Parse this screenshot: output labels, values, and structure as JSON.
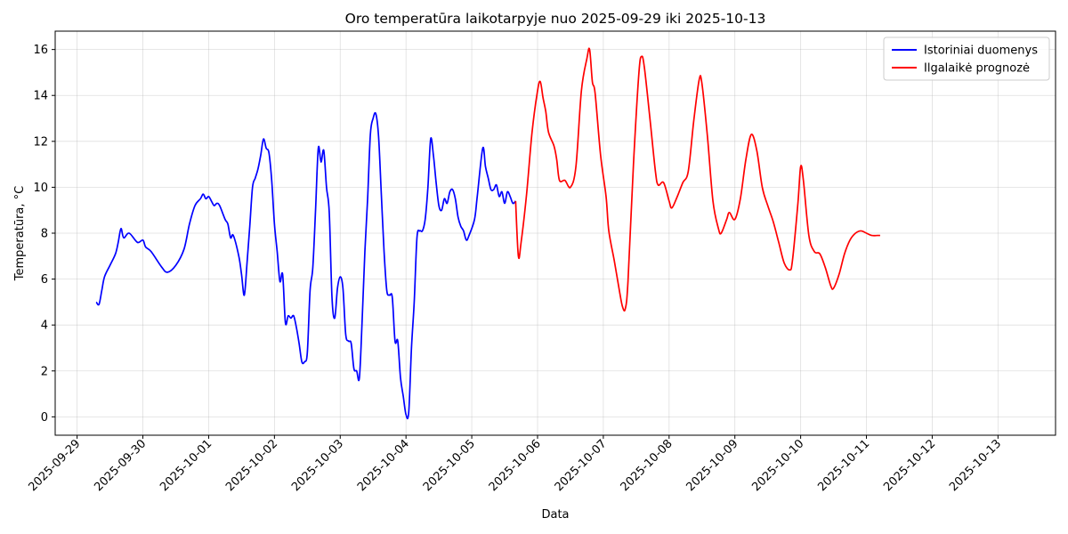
{
  "chart_data": {
    "type": "line",
    "title": "Oro temperatūra laikotarpyje nuo 2025-09-29 iki 2025-10-13",
    "xlabel": "Data",
    "ylabel": "Temperatūra, °C",
    "xlim": [
      "2025-09-28T16:00",
      "2025-10-13T21:00"
    ],
    "ylim": [
      -0.8,
      16.8
    ],
    "x_ticks": [
      "2025-09-29",
      "2025-09-30",
      "2025-10-01",
      "2025-10-02",
      "2025-10-03",
      "2025-10-04",
      "2025-10-05",
      "2025-10-06",
      "2025-10-07",
      "2025-10-08",
      "2025-10-09",
      "2025-10-10",
      "2025-10-11",
      "2025-10-12",
      "2025-10-13"
    ],
    "y_ticks": [
      0,
      2,
      4,
      6,
      8,
      10,
      12,
      14,
      16
    ],
    "grid": true,
    "legend": "top-right",
    "series": [
      {
        "name": "Istoriniai duomenys",
        "color": "#0000ff",
        "points": [
          [
            "2025-09-29T07:00",
            5.0
          ],
          [
            "2025-09-29T08:00",
            4.9
          ],
          [
            "2025-09-29T09:00",
            5.5
          ],
          [
            "2025-09-29T10:00",
            6.1
          ],
          [
            "2025-09-29T12:00",
            6.6
          ],
          [
            "2025-09-29T14:00",
            7.1
          ],
          [
            "2025-09-29T15:00",
            7.6
          ],
          [
            "2025-09-29T16:00",
            8.2
          ],
          [
            "2025-09-29T17:00",
            7.8
          ],
          [
            "2025-09-29T19:00",
            8.0
          ],
          [
            "2025-09-29T22:00",
            7.6
          ],
          [
            "2025-09-30T00:00",
            7.7
          ],
          [
            "2025-09-30T01:00",
            7.4
          ],
          [
            "2025-09-30T03:00",
            7.2
          ],
          [
            "2025-09-30T07:00",
            6.5
          ],
          [
            "2025-09-30T09:00",
            6.3
          ],
          [
            "2025-09-30T12:00",
            6.6
          ],
          [
            "2025-09-30T15:00",
            7.3
          ],
          [
            "2025-09-30T17:00",
            8.4
          ],
          [
            "2025-09-30T19:00",
            9.2
          ],
          [
            "2025-09-30T21:00",
            9.5
          ],
          [
            "2025-09-30T22:00",
            9.7
          ],
          [
            "2025-09-30T23:00",
            9.5
          ],
          [
            "2025-10-01T00:00",
            9.6
          ],
          [
            "2025-10-01T01:00",
            9.4
          ],
          [
            "2025-10-01T02:00",
            9.2
          ],
          [
            "2025-10-01T03:00",
            9.3
          ],
          [
            "2025-10-01T04:00",
            9.2
          ],
          [
            "2025-10-01T06:00",
            8.6
          ],
          [
            "2025-10-01T07:00",
            8.4
          ],
          [
            "2025-10-01T08:00",
            7.8
          ],
          [
            "2025-10-01T09:00",
            7.9
          ],
          [
            "2025-10-01T11:00",
            7.0
          ],
          [
            "2025-10-01T12:00",
            6.2
          ],
          [
            "2025-10-01T13:00",
            5.3
          ],
          [
            "2025-10-01T14:00",
            6.7
          ],
          [
            "2025-10-01T15:00",
            8.3
          ],
          [
            "2025-10-01T16:00",
            10.0
          ],
          [
            "2025-10-01T17:00",
            10.4
          ],
          [
            "2025-10-01T18:00",
            10.8
          ],
          [
            "2025-10-01T19:00",
            11.4
          ],
          [
            "2025-10-01T20:00",
            12.1
          ],
          [
            "2025-10-01T21:00",
            11.7
          ],
          [
            "2025-10-01T22:00",
            11.5
          ],
          [
            "2025-10-01T23:00",
            10.3
          ],
          [
            "2025-10-02T00:00",
            8.4
          ],
          [
            "2025-10-02T01:00",
            7.2
          ],
          [
            "2025-10-02T02:00",
            5.9
          ],
          [
            "2025-10-02T03:00",
            6.2
          ],
          [
            "2025-10-02T04:00",
            4.1
          ],
          [
            "2025-10-02T05:00",
            4.4
          ],
          [
            "2025-10-02T06:00",
            4.3
          ],
          [
            "2025-10-02T07:00",
            4.4
          ],
          [
            "2025-10-02T08:00",
            3.9
          ],
          [
            "2025-10-02T09:00",
            3.2
          ],
          [
            "2025-10-02T10:00",
            2.4
          ],
          [
            "2025-10-02T11:00",
            2.4
          ],
          [
            "2025-10-02T12:00",
            2.8
          ],
          [
            "2025-10-02T13:00",
            5.5
          ],
          [
            "2025-10-02T14:00",
            6.5
          ],
          [
            "2025-10-02T15:00",
            9.0
          ],
          [
            "2025-10-02T16:00",
            11.7
          ],
          [
            "2025-10-02T17:00",
            11.1
          ],
          [
            "2025-10-02T18:00",
            11.6
          ],
          [
            "2025-10-02T19:00",
            10.0
          ],
          [
            "2025-10-02T20:00",
            8.9
          ],
          [
            "2025-10-02T21:00",
            5.2
          ],
          [
            "2025-10-02T22:00",
            4.3
          ],
          [
            "2025-10-02T23:00",
            5.6
          ],
          [
            "2025-10-03T00:00",
            6.1
          ],
          [
            "2025-10-03T01:00",
            5.6
          ],
          [
            "2025-10-03T02:00",
            3.6
          ],
          [
            "2025-10-03T03:00",
            3.3
          ],
          [
            "2025-10-03T04:00",
            3.2
          ],
          [
            "2025-10-03T05:00",
            2.1
          ],
          [
            "2025-10-03T06:00",
            2.0
          ],
          [
            "2025-10-03T07:00",
            1.7
          ],
          [
            "2025-10-03T08:00",
            4.2
          ],
          [
            "2025-10-03T09:00",
            7.2
          ],
          [
            "2025-10-03T10:00",
            9.5
          ],
          [
            "2025-10-03T11:00",
            12.3
          ],
          [
            "2025-10-03T12:00",
            13.0
          ],
          [
            "2025-10-03T13:00",
            13.2
          ],
          [
            "2025-10-03T14:00",
            12.2
          ],
          [
            "2025-10-03T15:00",
            9.7
          ],
          [
            "2025-10-03T16:00",
            7.2
          ],
          [
            "2025-10-03T17:00",
            5.5
          ],
          [
            "2025-10-03T18:00",
            5.3
          ],
          [
            "2025-10-03T19:00",
            5.2
          ],
          [
            "2025-10-03T20:00",
            3.3
          ],
          [
            "2025-10-03T21:00",
            3.3
          ],
          [
            "2025-10-03T22:00",
            1.7
          ],
          [
            "2025-10-03T23:00",
            0.9
          ],
          [
            "2025-10-04T00:00",
            0.1
          ],
          [
            "2025-10-04T01:00",
            0.2
          ],
          [
            "2025-10-04T02:00",
            3.0
          ],
          [
            "2025-10-04T03:00",
            5.0
          ],
          [
            "2025-10-04T04:00",
            7.8
          ],
          [
            "2025-10-04T05:00",
            8.1
          ],
          [
            "2025-10-04T06:00",
            8.1
          ],
          [
            "2025-10-04T07:00",
            8.6
          ],
          [
            "2025-10-04T08:00",
            10.0
          ],
          [
            "2025-10-04T09:00",
            12.1
          ],
          [
            "2025-10-04T10:00",
            11.4
          ],
          [
            "2025-10-04T11:00",
            10.2
          ],
          [
            "2025-10-04T12:00",
            9.2
          ],
          [
            "2025-10-04T13:00",
            9.0
          ],
          [
            "2025-10-04T14:00",
            9.5
          ],
          [
            "2025-10-04T15:00",
            9.3
          ],
          [
            "2025-10-04T16:00",
            9.8
          ],
          [
            "2025-10-04T17:00",
            9.9
          ],
          [
            "2025-10-04T18:00",
            9.5
          ],
          [
            "2025-10-04T19:00",
            8.7
          ],
          [
            "2025-10-04T20:00",
            8.3
          ],
          [
            "2025-10-04T21:00",
            8.1
          ],
          [
            "2025-10-04T22:00",
            7.7
          ],
          [
            "2025-10-04T23:00",
            7.9
          ],
          [
            "2025-10-05T01:00",
            8.6
          ],
          [
            "2025-10-05T02:00",
            9.6
          ],
          [
            "2025-10-05T04:00",
            11.7
          ],
          [
            "2025-10-05T05:00",
            10.9
          ],
          [
            "2025-10-05T06:00",
            10.4
          ],
          [
            "2025-10-05T07:00",
            9.9
          ],
          [
            "2025-10-05T08:00",
            9.9
          ],
          [
            "2025-10-05T09:00",
            10.1
          ],
          [
            "2025-10-05T10:00",
            9.6
          ],
          [
            "2025-10-05T11:00",
            9.8
          ],
          [
            "2025-10-05T12:00",
            9.3
          ],
          [
            "2025-10-05T13:00",
            9.8
          ],
          [
            "2025-10-05T14:00",
            9.6
          ],
          [
            "2025-10-05T15:00",
            9.3
          ],
          [
            "2025-10-05T16:00",
            9.4
          ]
        ]
      },
      {
        "name": "Ilgalaikė prognozė",
        "color": "#ff0000",
        "points": [
          [
            "2025-10-05T16:00",
            9.4
          ],
          [
            "2025-10-05T17:00",
            7.0
          ],
          [
            "2025-10-05T18:00",
            7.6
          ],
          [
            "2025-10-05T20:00",
            9.7
          ],
          [
            "2025-10-05T22:00",
            12.4
          ],
          [
            "2025-10-06T00:00",
            14.2
          ],
          [
            "2025-10-06T01:00",
            14.6
          ],
          [
            "2025-10-06T02:00",
            13.9
          ],
          [
            "2025-10-06T03:00",
            13.3
          ],
          [
            "2025-10-06T04:00",
            12.4
          ],
          [
            "2025-10-06T06:00",
            11.8
          ],
          [
            "2025-10-06T07:00",
            11.2
          ],
          [
            "2025-10-06T08:00",
            10.3
          ],
          [
            "2025-10-06T10:00",
            10.3
          ],
          [
            "2025-10-06T12:00",
            10.0
          ],
          [
            "2025-10-06T14:00",
            10.9
          ],
          [
            "2025-10-06T16:00",
            14.2
          ],
          [
            "2025-10-06T18:00",
            15.6
          ],
          [
            "2025-10-06T19:00",
            16.0
          ],
          [
            "2025-10-06T20:00",
            14.6
          ],
          [
            "2025-10-06T21:00",
            14.1
          ],
          [
            "2025-10-06T23:00",
            11.4
          ],
          [
            "2025-10-07T01:00",
            9.6
          ],
          [
            "2025-10-07T02:00",
            8.1
          ],
          [
            "2025-10-07T04:00",
            6.8
          ],
          [
            "2025-10-07T06:00",
            5.4
          ],
          [
            "2025-10-07T07:00",
            4.8
          ],
          [
            "2025-10-07T08:00",
            4.7
          ],
          [
            "2025-10-07T09:00",
            5.9
          ],
          [
            "2025-10-07T11:00",
            11.0
          ],
          [
            "2025-10-07T13:00",
            15.0
          ],
          [
            "2025-10-07T14:00",
            15.7
          ],
          [
            "2025-10-07T15:00",
            15.2
          ],
          [
            "2025-10-07T17:00",
            13.0
          ],
          [
            "2025-10-07T19:00",
            10.7
          ],
          [
            "2025-10-07T20:00",
            10.1
          ],
          [
            "2025-10-07T22:00",
            10.2
          ],
          [
            "2025-10-08T00:00",
            9.4
          ],
          [
            "2025-10-08T01:00",
            9.1
          ],
          [
            "2025-10-08T03:00",
            9.6
          ],
          [
            "2025-10-08T05:00",
            10.2
          ],
          [
            "2025-10-08T07:00",
            10.7
          ],
          [
            "2025-10-08T09:00",
            12.9
          ],
          [
            "2025-10-08T11:00",
            14.7
          ],
          [
            "2025-10-08T12:00",
            14.5
          ],
          [
            "2025-10-08T14:00",
            12.2
          ],
          [
            "2025-10-08T16:00",
            9.4
          ],
          [
            "2025-10-08T18:00",
            8.2
          ],
          [
            "2025-10-08T19:00",
            8.0
          ],
          [
            "2025-10-08T21:00",
            8.6
          ],
          [
            "2025-10-08T22:00",
            8.9
          ],
          [
            "2025-10-09T00:00",
            8.6
          ],
          [
            "2025-10-09T02:00",
            9.5
          ],
          [
            "2025-10-09T04:00",
            11.2
          ],
          [
            "2025-10-09T06:00",
            12.3
          ],
          [
            "2025-10-09T08:00",
            11.6
          ],
          [
            "2025-10-09T10:00",
            10.0
          ],
          [
            "2025-10-09T12:00",
            9.2
          ],
          [
            "2025-10-09T14:00",
            8.5
          ],
          [
            "2025-10-09T16:00",
            7.6
          ],
          [
            "2025-10-09T18:00",
            6.7
          ],
          [
            "2025-10-09T20:00",
            6.4
          ],
          [
            "2025-10-09T21:00",
            6.8
          ],
          [
            "2025-10-09T23:00",
            9.3
          ],
          [
            "2025-10-10T00:00",
            10.9
          ],
          [
            "2025-10-10T01:00",
            10.3
          ],
          [
            "2025-10-10T03:00",
            7.9
          ],
          [
            "2025-10-10T05:00",
            7.2
          ],
          [
            "2025-10-10T07:00",
            7.1
          ],
          [
            "2025-10-10T09:00",
            6.5
          ],
          [
            "2025-10-10T11:00",
            5.7
          ],
          [
            "2025-10-10T12:00",
            5.6
          ],
          [
            "2025-10-10T14:00",
            6.2
          ],
          [
            "2025-10-10T16:00",
            7.1
          ],
          [
            "2025-10-10T18:00",
            7.7
          ],
          [
            "2025-10-10T20:00",
            8.0
          ],
          [
            "2025-10-10T22:00",
            8.1
          ],
          [
            "2025-10-11T00:00",
            8.0
          ],
          [
            "2025-10-11T02:00",
            7.9
          ],
          [
            "2025-10-11T04:00",
            7.9
          ],
          [
            "2025-10-11T05:00",
            7.9
          ]
        ]
      }
    ]
  }
}
